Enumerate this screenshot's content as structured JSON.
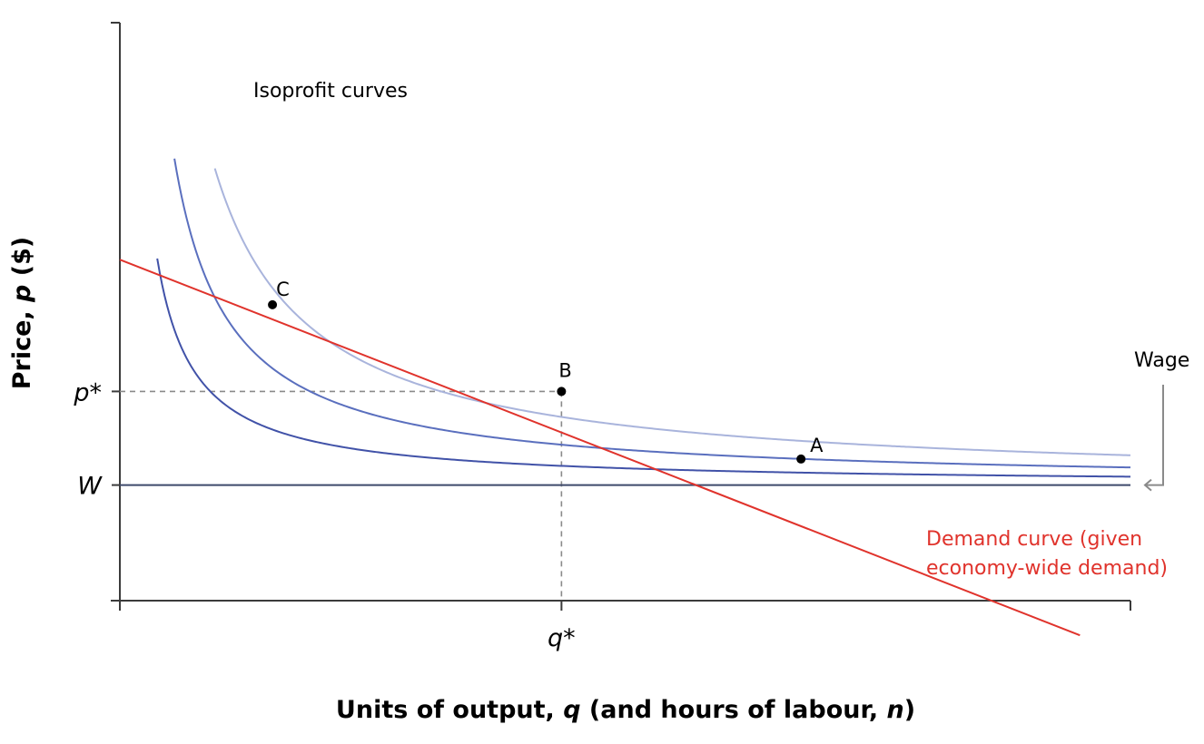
{
  "chart_data": {
    "type": "line",
    "title": "",
    "xlabel": {
      "prefix": "Units of output, ",
      "var1": "q",
      "middle": " (and hours of labour, ",
      "var2": "n",
      "suffix": ")"
    },
    "ylabel": {
      "prefix": "Price, ",
      "var": "p",
      "suffix": " ($)"
    },
    "xlim": [
      0,
      1
    ],
    "ylim": [
      0,
      1
    ],
    "grid": false,
    "x_ticks": [
      {
        "label": "q*",
        "value": 0.437
      }
    ],
    "y_ticks": [
      {
        "label": "p*",
        "value": 0.362
      },
      {
        "label": "W",
        "value": 0.2
      }
    ],
    "wage": 0.2,
    "series": [
      {
        "name": "",
        "kind": "isoprofit",
        "color": "#a9b4dc",
        "k": 0.0515,
        "x_range": [
          0.094,
          1.0
        ]
      },
      {
        "name": "",
        "kind": "isoprofit",
        "color": "#5a6fbe",
        "k": 0.0305,
        "x_range": [
          0.054,
          1.0
        ]
      },
      {
        "name": "",
        "kind": "isoprofit",
        "color": "#4152a8",
        "k": 0.0145,
        "x_range": [
          0.037,
          1.0
        ]
      },
      {
        "name": "",
        "kind": "demand",
        "color": "#e0332c",
        "x": [
          0,
          0.95
        ],
        "y": [
          0.59,
          -0.06
        ]
      }
    ],
    "points": [
      {
        "label": "C",
        "x": 0.151,
        "y": 0.512
      },
      {
        "label": "B",
        "x": 0.437,
        "y": 0.362
      },
      {
        "label": "A",
        "x": 0.674,
        "y": 0.245
      }
    ],
    "annotations": {
      "isoprofit": "Isoprofit curves",
      "wage": "Wage",
      "demand_line1": "Demand curve (given",
      "demand_line2": "economy-wide demand)"
    },
    "colors": {
      "axis": "#3b3b3b",
      "wage_line": "#3e4a6b",
      "dashed": "#8a8a8a",
      "demand_text": "#e0332c",
      "wage_arrow": "#8a8a8a"
    }
  }
}
